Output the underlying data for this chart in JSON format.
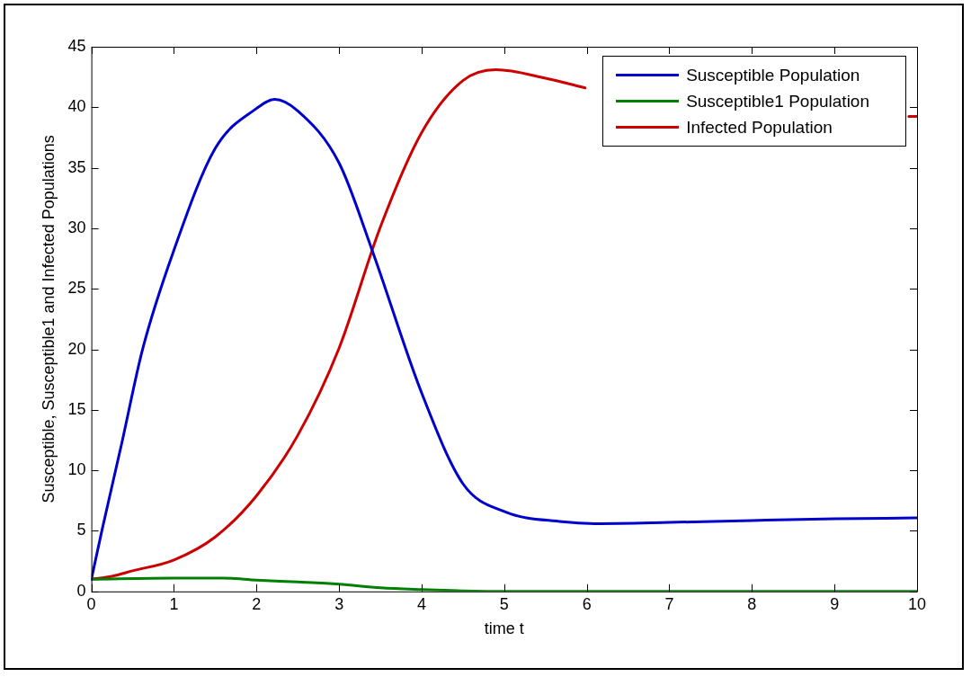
{
  "chart_data": {
    "type": "line",
    "xlabel": "time t",
    "ylabel": "Susceptible, Susceptible1 and Infected Populations",
    "xlim": [
      0,
      10
    ],
    "xticks": [
      0,
      1,
      2,
      3,
      4,
      5,
      6,
      7,
      8,
      9,
      10
    ],
    "ylim": [
      0,
      45
    ],
    "yticks": [
      0,
      5,
      10,
      15,
      20,
      25,
      30,
      35,
      40,
      45
    ],
    "grid": false,
    "legend": "top right",
    "marker": "none",
    "line_style": "solid",
    "series": [
      {
        "name": "Susceptible Population",
        "color": "#0000cc",
        "x": [
          0,
          0.13,
          0.37,
          0.62,
          1,
          1.5,
          2,
          2.22,
          2.5,
          3,
          3.4,
          4,
          4.5,
          5,
          5.7,
          6.1,
          7,
          8,
          9,
          10
        ],
        "values": [
          1,
          5.1,
          12.3,
          20,
          28.2,
          36.6,
          39.9,
          40.65,
          39.7,
          35.4,
          28.2,
          16.4,
          8.9,
          6.6,
          5.76,
          5.6,
          5.7,
          5.86,
          6,
          6.07
        ]
      },
      {
        "name": "Susceptible1 Population",
        "color": "#008000",
        "x": [
          0,
          1,
          1.6,
          2,
          2.5,
          3,
          3.5,
          4,
          4.5,
          5,
          6,
          7,
          8,
          9,
          10
        ],
        "values": [
          1,
          1.1,
          1.1,
          0.93,
          0.78,
          0.6,
          0.3,
          0.15,
          0.05,
          0,
          0,
          0,
          0,
          0,
          0
        ]
      },
      {
        "name": "Infected Population",
        "color": "#cc0000",
        "x": [
          0,
          0.25,
          0.5,
          1,
          1.5,
          2,
          2.5,
          3,
          3.5,
          4,
          4.5,
          4.9,
          5.5,
          5.98,
          6.5,
          9.9,
          10
        ],
        "values": [
          1,
          1.25,
          1.7,
          2.6,
          4.5,
          7.9,
          12.9,
          20.1,
          30.1,
          37.9,
          42.2,
          43.1,
          42.4,
          41.6,
          null,
          39.25,
          39.25
        ]
      }
    ]
  }
}
